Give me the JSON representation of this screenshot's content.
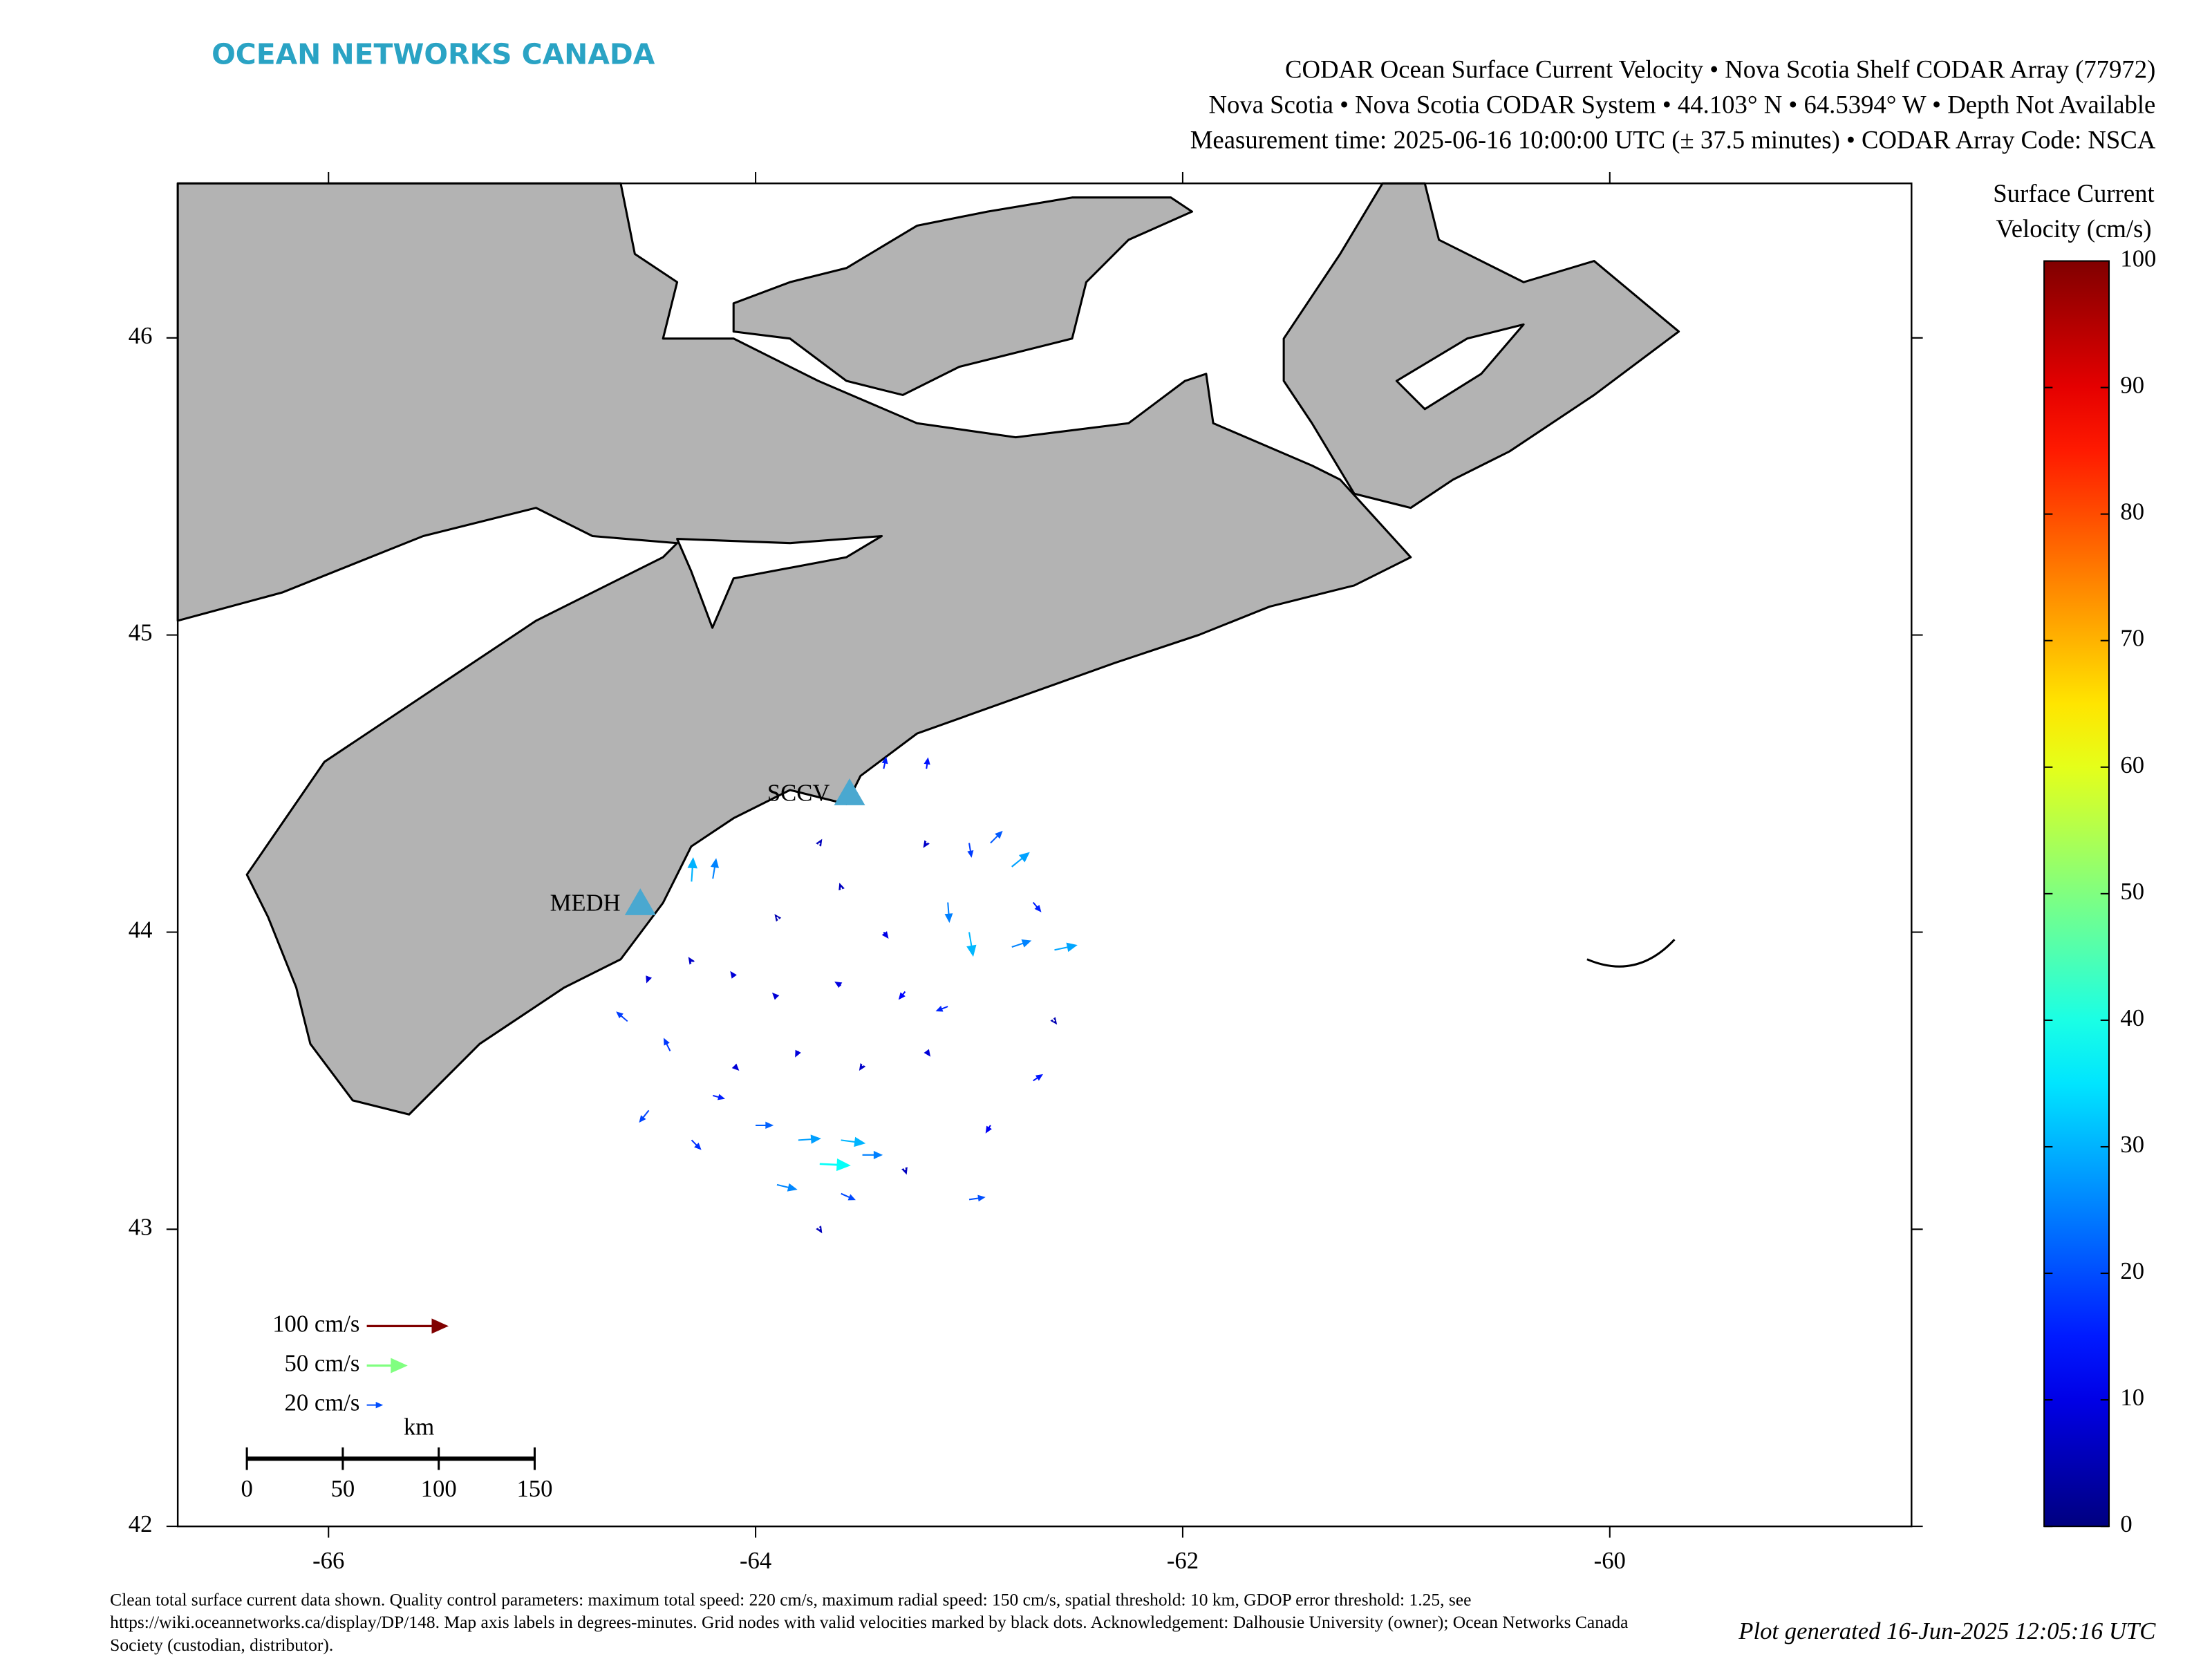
{
  "header": {
    "brand": "OCEAN NETWORKS CANADA",
    "title_lines": [
      "CODAR Ocean Surface Current Velocity • Nova Scotia Shelf CODAR Array (77972)",
      "Nova Scotia • Nova Scotia CODAR System • 44.103° N • 64.5394° W • Depth Not Available",
      "Measurement time: 2025-06-16 10:00:00 UTC (± 37.5 minutes) • CODAR Array Code: NSCA"
    ]
  },
  "chart_data": {
    "type": "quiver",
    "xlim": [
      -66.706,
      -58.587
    ],
    "ylim": [
      42,
      46.52
    ],
    "xticks": [
      -66,
      -64,
      -62,
      -60
    ],
    "yticks": [
      42,
      43,
      44,
      45,
      46
    ],
    "stations": [
      {
        "name": "SCCV",
        "lon": -63.56,
        "lat": 44.47
      },
      {
        "name": "MEDH",
        "lon": -64.54,
        "lat": 44.1
      }
    ],
    "vectors": {
      "x": [
        -64.3,
        -64.2,
        -63.4,
        -63.2,
        -63.0,
        -62.9,
        -62.8,
        -62.7,
        -63.1,
        -63.0,
        -62.8,
        -62.6,
        -63.3,
        -63.1,
        -63.6,
        -63.9,
        -64.1,
        -64.3,
        -64.5,
        -64.6,
        -64.4,
        -64.1,
        -63.8,
        -63.5,
        -63.2,
        -64.5,
        -64.3,
        -64.0,
        -63.8,
        -63.6,
        -63.7,
        -63.5,
        -63.9,
        -63.6,
        -63.3,
        -63.0,
        -62.9,
        -62.7,
        -63.7,
        -63.9,
        -63.4,
        -63.6,
        -63.2,
        -62.6,
        -64.2,
        -63.7
      ],
      "y": [
        44.17,
        44.18,
        44.55,
        44.55,
        44.3,
        44.3,
        44.22,
        44.1,
        44.1,
        44.0,
        43.95,
        43.94,
        43.8,
        43.75,
        43.82,
        43.78,
        43.85,
        43.9,
        43.85,
        43.7,
        43.6,
        43.55,
        43.6,
        43.55,
        43.6,
        43.4,
        43.3,
        43.35,
        43.3,
        43.3,
        43.22,
        43.25,
        43.15,
        43.12,
        43.2,
        43.1,
        43.35,
        43.5,
        44.3,
        44.05,
        44.0,
        44.15,
        44.3,
        43.7,
        43.45,
        43.0
      ],
      "u": [
        2,
        4,
        3,
        2,
        3,
        15,
        22,
        10,
        2,
        5,
        24,
        28,
        -8,
        -15,
        -8,
        -6,
        -5,
        -4,
        -3,
        -14,
        -8,
        6,
        -4,
        -4,
        5,
        -12,
        12,
        22,
        28,
        30,
        38,
        25,
        25,
        18,
        2,
        20,
        -6,
        12,
        3,
        -3,
        6,
        -2,
        -4,
        3,
        15,
        3
      ],
      "v": [
        30,
        25,
        15,
        14,
        -18,
        15,
        18,
        -12,
        -25,
        -30,
        8,
        6,
        -10,
        -6,
        5,
        6,
        7,
        6,
        -8,
        12,
        16,
        -6,
        -8,
        -6,
        -7,
        -15,
        -12,
        0,
        2,
        -4,
        -2,
        0,
        -6,
        -8,
        -6,
        3,
        -10,
        8,
        5,
        4,
        -8,
        6,
        -6,
        -4,
        -4,
        -5
      ]
    },
    "colorbar": {
      "label_lines": [
        "Surface Current",
        "Velocity (cm/s)"
      ],
      "lim": [
        0,
        100
      ],
      "ticks": [
        0,
        10,
        20,
        30,
        40,
        50,
        60,
        70,
        80,
        90,
        100
      ]
    },
    "reference_arrows": [
      {
        "value": 100,
        "label": "100 cm/s"
      },
      {
        "value": 50,
        "label": "50 cm/s"
      },
      {
        "value": 20,
        "label": "20 cm/s"
      }
    ],
    "scale_bar": {
      "title": "km",
      "ticks": [
        0,
        50,
        100,
        150
      ]
    }
  },
  "footer": {
    "note": "Clean total surface current data shown. Quality control parameters: maximum total speed: 220 cm/s, maximum radial speed: 150 cm/s, spatial threshold: 10 km, GDOP error threshold: 1.25, see https://wiki.oceannetworks.ca/display/DP/148. Map axis labels in degrees-minutes. Grid nodes with valid velocities marked by black dots. Acknowledgement: Dalhousie University (owner); Ocean Networks Canada Society (custodian, distributor).",
    "generated": "Plot generated 16-Jun-2025 12:05:16 UTC"
  }
}
